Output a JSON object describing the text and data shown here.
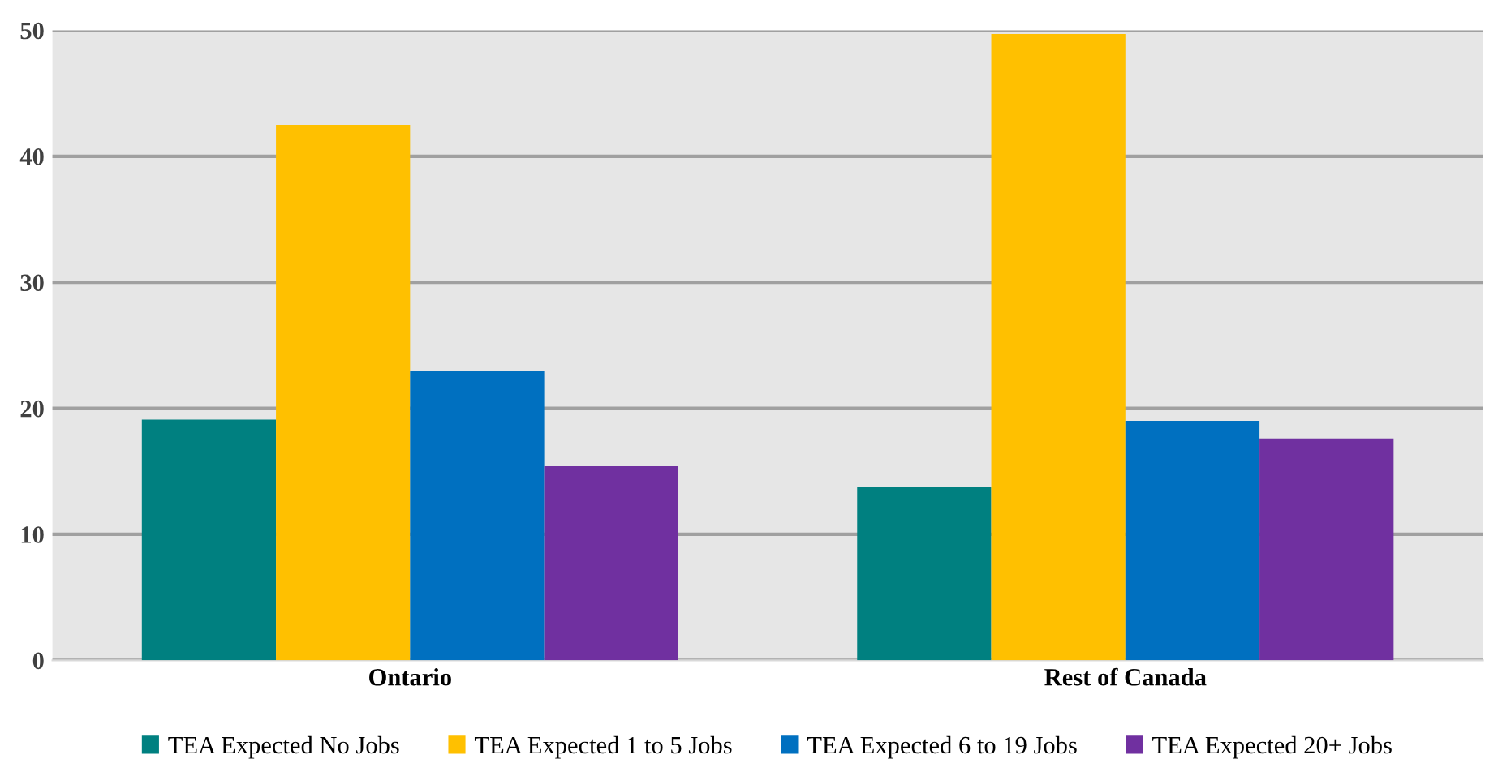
{
  "chart_data": {
    "type": "bar",
    "categories": [
      "Ontario",
      "Rest of Canada"
    ],
    "series": [
      {
        "name": "TEA Expected No Jobs",
        "color": "#008080",
        "values": [
          19.1,
          13.8
        ]
      },
      {
        "name": "TEA Expected 1 to 5 Jobs",
        "color": "#ffc000",
        "values": [
          42.5,
          49.7
        ]
      },
      {
        "name": "TEA Expected 6 to 19 Jobs",
        "color": "#0070c0",
        "values": [
          23.0,
          19.0
        ]
      },
      {
        "name": "TEA Expected 20+ Jobs",
        "color": "#7030a0",
        "values": [
          15.4,
          17.6
        ]
      }
    ],
    "ylim": [
      0,
      50
    ],
    "yticks": [
      0,
      10,
      20,
      30,
      40,
      50
    ],
    "grid": "y",
    "legend": "bottom"
  }
}
